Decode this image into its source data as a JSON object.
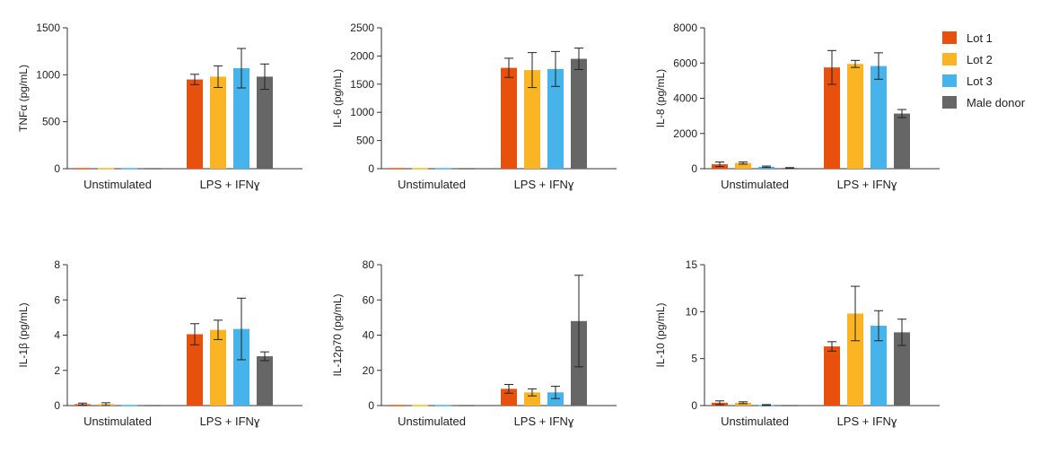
{
  "colors": {
    "Lot 1": "#e8500e",
    "Lot 2": "#fbb524",
    "Lot 3": "#46b4ea",
    "Male donor": "#666666",
    "axis": "#333333",
    "errorbar": "#222222"
  },
  "legend": {
    "placement": "right",
    "entries": [
      "Lot 1",
      "Lot 2",
      "Lot 3",
      "Male donor"
    ]
  },
  "chart_data": [
    {
      "type": "bar",
      "ylabel": "TNFα (pg/mL)",
      "ylim": [
        0,
        1500
      ],
      "yticks": [
        0,
        500,
        1000,
        1500
      ],
      "categories": [
        "Unstimulated",
        "LPS + IFNɣ"
      ],
      "series": [
        {
          "name": "Lot 1",
          "values": [
            0,
            950
          ],
          "errors": [
            0,
            55
          ]
        },
        {
          "name": "Lot 2",
          "values": [
            0,
            980
          ],
          "errors": [
            0,
            115
          ]
        },
        {
          "name": "Lot 3",
          "values": [
            0,
            1070
          ],
          "errors": [
            0,
            210
          ]
        },
        {
          "name": "Male donor",
          "values": [
            0,
            980
          ],
          "errors": [
            0,
            135
          ]
        }
      ]
    },
    {
      "type": "bar",
      "ylabel": "IL-6 (pg/mL)",
      "ylim": [
        0,
        2500
      ],
      "yticks": [
        0,
        500,
        1000,
        1500,
        2000,
        2500
      ],
      "categories": [
        "Unstimulated",
        "LPS + IFNɣ"
      ],
      "series": [
        {
          "name": "Lot 1",
          "values": [
            0,
            1790
          ],
          "errors": [
            0,
            170
          ]
        },
        {
          "name": "Lot 2",
          "values": [
            0,
            1750
          ],
          "errors": [
            0,
            310
          ]
        },
        {
          "name": "Lot 3",
          "values": [
            0,
            1770
          ],
          "errors": [
            0,
            310
          ]
        },
        {
          "name": "Male donor",
          "values": [
            0,
            1950
          ],
          "errors": [
            0,
            190
          ]
        }
      ]
    },
    {
      "type": "bar",
      "ylabel": "IL-8 (pg/mL)",
      "ylim": [
        0,
        8000
      ],
      "yticks": [
        0,
        2000,
        4000,
        6000,
        8000
      ],
      "categories": [
        "Unstimulated",
        "LPS + IFNɣ"
      ],
      "series": [
        {
          "name": "Lot 1",
          "values": [
            250,
            5750
          ],
          "errors": [
            130,
            960
          ]
        },
        {
          "name": "Lot 2",
          "values": [
            320,
            5950
          ],
          "errors": [
            60,
            200
          ]
        },
        {
          "name": "Lot 3",
          "values": [
            110,
            5830
          ],
          "errors": [
            40,
            750
          ]
        },
        {
          "name": "Male donor",
          "values": [
            40,
            3130
          ],
          "errors": [
            20,
            230
          ]
        }
      ]
    },
    {
      "type": "bar",
      "ylabel": "IL-1β (pg/mL)",
      "ylim": [
        0,
        8
      ],
      "yticks": [
        0,
        2,
        4,
        6,
        8
      ],
      "categories": [
        "Unstimulated",
        "LPS + IFNɣ"
      ],
      "series": [
        {
          "name": "Lot 1",
          "values": [
            0.08,
            4.05
          ],
          "errors": [
            0.06,
            0.6
          ]
        },
        {
          "name": "Lot 2",
          "values": [
            0.08,
            4.3
          ],
          "errors": [
            0.08,
            0.55
          ]
        },
        {
          "name": "Lot 3",
          "values": [
            0.02,
            4.35
          ],
          "errors": [
            0,
            1.75
          ]
        },
        {
          "name": "Male donor",
          "values": [
            0,
            2.8
          ],
          "errors": [
            0,
            0.25
          ]
        }
      ]
    },
    {
      "type": "bar",
      "ylabel": "IL-12p70 (pg/mL)",
      "ylim": [
        0,
        80
      ],
      "yticks": [
        0,
        20,
        40,
        60,
        80
      ],
      "categories": [
        "Unstimulated",
        "LPS + IFNɣ"
      ],
      "series": [
        {
          "name": "Lot 1",
          "values": [
            0,
            9.5
          ],
          "errors": [
            0,
            2.5
          ]
        },
        {
          "name": "Lot 2",
          "values": [
            0,
            7.5
          ],
          "errors": [
            0,
            2
          ]
        },
        {
          "name": "Lot 3",
          "values": [
            0,
            7.5
          ],
          "errors": [
            0,
            3.5
          ]
        },
        {
          "name": "Male donor",
          "values": [
            0,
            48
          ],
          "errors": [
            0,
            26
          ]
        }
      ]
    },
    {
      "type": "bar",
      "ylabel": "IL-10 (pg/mL)",
      "ylim": [
        0,
        15
      ],
      "yticks": [
        0,
        5,
        10,
        15
      ],
      "categories": [
        "Unstimulated",
        "LPS + IFNɣ"
      ],
      "series": [
        {
          "name": "Lot 1",
          "values": [
            0.3,
            6.3
          ],
          "errors": [
            0.2,
            0.5
          ]
        },
        {
          "name": "Lot 2",
          "values": [
            0.3,
            9.8
          ],
          "errors": [
            0.1,
            2.9
          ]
        },
        {
          "name": "Lot 3",
          "values": [
            0.05,
            8.5
          ],
          "errors": [
            0.05,
            1.6
          ]
        },
        {
          "name": "Male donor",
          "values": [
            0,
            7.8
          ],
          "errors": [
            0,
            1.4
          ]
        }
      ]
    }
  ]
}
